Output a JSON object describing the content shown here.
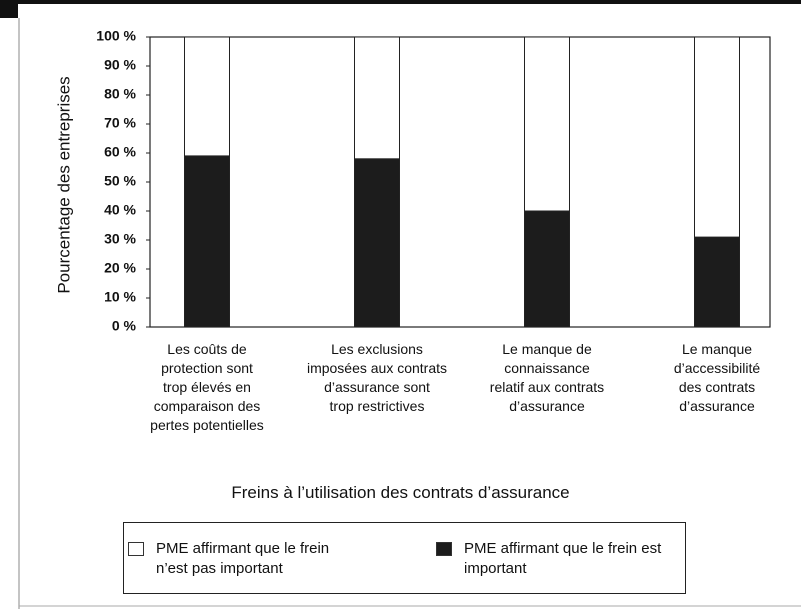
{
  "chart_data": {
    "type": "stacked_bar",
    "ylabel": "Pourcentage des entreprises",
    "xlabel": "Freins à l’utilisation des contrats d’assurance",
    "categories": [
      "Les coûts de\nprotection sont\ntrop élevés en\ncomparaison des\npertes potentielles",
      "Les exclusions\nimposées aux contrats\nd’assurance sont\ntrop restrictives",
      "Le manque de\nconnaissance\nrelatif aux contrats\nd’assurance",
      "Le manque\nd’accessibilité\ndes contrats\nd’assurance"
    ],
    "series": [
      {
        "name": "PME affirmant que le frein n’est pas important",
        "color": "#ffffff",
        "values": [
          41,
          42,
          60,
          69
        ]
      },
      {
        "name": "PME affirmant que le frein est important",
        "color": "#1c1c1c",
        "values": [
          59,
          58,
          40,
          31
        ]
      }
    ],
    "ylim": [
      0,
      100
    ],
    "yticks": [
      {
        "value": 0,
        "label": "0 %"
      },
      {
        "value": 10,
        "label": "10 %"
      },
      {
        "value": 20,
        "label": "20 %"
      },
      {
        "value": 30,
        "label": "30 %"
      },
      {
        "value": 40,
        "label": "40 %"
      },
      {
        "value": 50,
        "label": "50 %"
      },
      {
        "value": 60,
        "label": "60 %"
      },
      {
        "value": 70,
        "label": "70 %"
      },
      {
        "value": 80,
        "label": "80 %"
      },
      {
        "value": 90,
        "label": "90 %"
      },
      {
        "value": 100,
        "label": "100 %"
      }
    ],
    "grid": false,
    "legend": "bottom"
  }
}
